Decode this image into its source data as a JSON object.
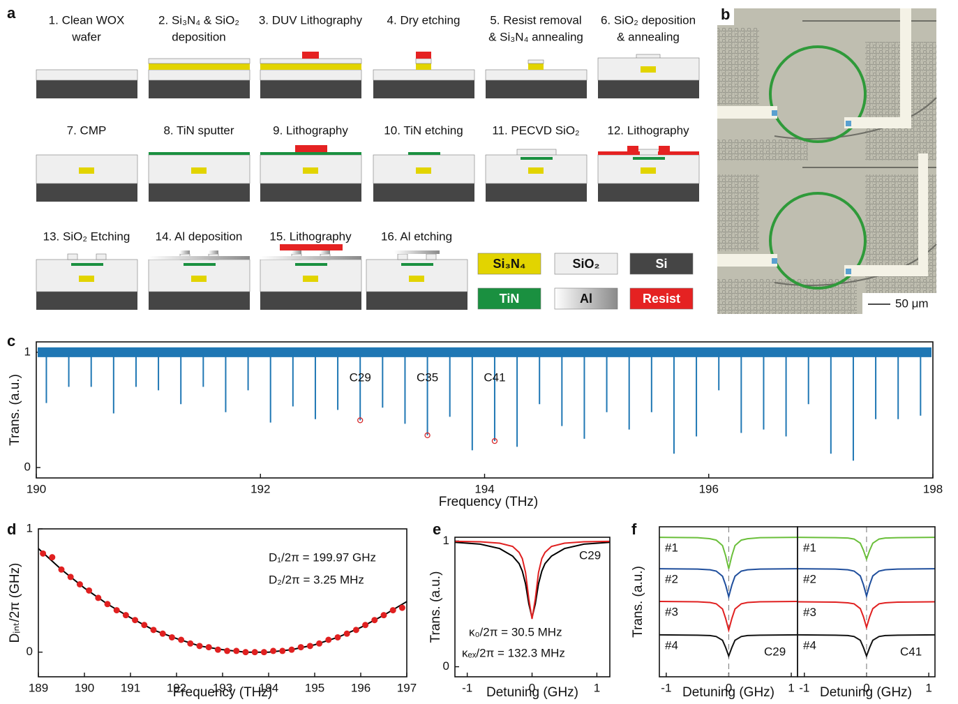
{
  "panel_a": {
    "label": "a",
    "steps": [
      [
        "1. Clean WOX",
        "wafer"
      ],
      [
        "2. Si₃N₄ & SiO₂",
        "deposition"
      ],
      [
        "3. DUV Lithography"
      ],
      [
        "4. Dry etching"
      ],
      [
        "5. Resist removal",
        "& Si₃N₄ annealing"
      ],
      [
        "6. SiO₂ deposition",
        "& annealing"
      ],
      [
        "7. CMP"
      ],
      [
        "8. TiN sputter"
      ],
      [
        "9. Lithography"
      ],
      [
        "10. TiN etching"
      ],
      [
        "11. PECVD SiO₂"
      ],
      [
        "12. Lithography"
      ],
      [
        "13. SiO₂ Etching"
      ],
      [
        "14. Al deposition"
      ],
      [
        "15. Lithography"
      ],
      [
        "16. Al etching"
      ]
    ],
    "legend": [
      {
        "text": "Si₃N₄",
        "color": "#e2d400"
      },
      {
        "text": "SiO₂",
        "color": "#efefef"
      },
      {
        "text": "Si",
        "color": "#454545"
      },
      {
        "text": "TiN",
        "color": "#1a9040"
      },
      {
        "text": "Al",
        "color": "#8a8a8a"
      },
      {
        "text": "Resist",
        "color": "#e52222"
      }
    ]
  },
  "panel_b": {
    "label": "b",
    "scale_bar": "50 μm"
  },
  "chart_data": [
    {
      "type": "spectrum",
      "label": "c",
      "x_label": "Frequency (THz)",
      "y_label": "Trans. (a.u.)",
      "xlim": [
        190,
        198
      ],
      "ylim": [
        -0.09,
        1.09
      ],
      "xticks": [
        190,
        192,
        194,
        196,
        198
      ],
      "yticks": [
        0,
        1
      ],
      "baseline": 1,
      "color": "#1f77b4",
      "x": [
        190.09,
        190.29,
        190.49,
        190.69,
        190.89,
        191.09,
        191.29,
        191.49,
        191.69,
        191.89,
        192.09,
        192.29,
        192.49,
        192.69,
        192.89,
        193.09,
        193.29,
        193.49,
        193.69,
        193.89,
        194.09,
        194.29,
        194.49,
        194.69,
        194.89,
        195.09,
        195.29,
        195.49,
        195.69,
        195.89,
        196.09,
        196.29,
        196.49,
        196.69,
        196.89,
        197.09,
        197.29,
        197.49,
        197.69,
        197.89
      ],
      "values": [
        0.56,
        0.7,
        0.7,
        0.47,
        0.7,
        0.67,
        0.55,
        0.7,
        0.48,
        0.67,
        0.39,
        0.53,
        0.42,
        0.5,
        0.41,
        0.52,
        0.38,
        0.28,
        0.44,
        0.15,
        0.23,
        0.18,
        0.55,
        0.36,
        0.25,
        0.48,
        0.33,
        0.48,
        0.12,
        0.27,
        0.67,
        0.3,
        0.33,
        0.27,
        0.55,
        0.12,
        0.06,
        0.42,
        0.42,
        0.45
      ],
      "markers": {
        "labels": [
          "C29",
          "C35",
          "C41"
        ],
        "x": [
          192.89,
          193.49,
          194.09
        ],
        "values": [
          0.41,
          0.28,
          0.23
        ],
        "color": "#d62728"
      }
    },
    {
      "type": "scatter",
      "label": "d",
      "x_label": "Frequency (THz)",
      "y_label": "Dᵢₙₜ/2π (GHz)",
      "xlim": [
        189,
        197
      ],
      "ylim": [
        -0.2,
        1
      ],
      "xticks": [
        189,
        190,
        191,
        192,
        193,
        194,
        195,
        196,
        197
      ],
      "yticks": [
        0,
        1
      ],
      "color": "#e02020",
      "x": [
        189.1,
        189.3,
        189.5,
        189.7,
        189.9,
        190.1,
        190.3,
        190.5,
        190.7,
        190.9,
        191.1,
        191.3,
        191.5,
        191.7,
        191.9,
        192.1,
        192.3,
        192.5,
        192.7,
        192.9,
        193.1,
        193.3,
        193.5,
        193.7,
        193.9,
        194.1,
        194.3,
        194.5,
        194.7,
        194.9,
        195.1,
        195.3,
        195.5,
        195.7,
        195.9,
        196.1,
        196.3,
        196.5,
        196.7,
        196.9
      ],
      "values": [
        0.8,
        0.77,
        0.67,
        0.61,
        0.55,
        0.5,
        0.44,
        0.39,
        0.34,
        0.3,
        0.26,
        0.22,
        0.18,
        0.15,
        0.12,
        0.1,
        0.07,
        0.05,
        0.04,
        0.02,
        0.01,
        0.01,
        0,
        0,
        0,
        0.01,
        0.01,
        0.02,
        0.04,
        0.05,
        0.07,
        0.1,
        0.12,
        0.15,
        0.18,
        0.22,
        0.26,
        0.3,
        0.34,
        0.36
      ],
      "fit": {
        "color": "#000000",
        "x": [
          189,
          189.5,
          190,
          190.5,
          191,
          191.5,
          192,
          192.5,
          193,
          193.5,
          194,
          194.5,
          195,
          195.5,
          196,
          196.5,
          197
        ],
        "values": [
          0.84,
          0.67,
          0.52,
          0.39,
          0.28,
          0.18,
          0.11,
          0.05,
          0.02,
          0,
          0,
          0.02,
          0.06,
          0.12,
          0.2,
          0.3,
          0.41
        ]
      },
      "annotations": [
        "D₁/2π = 199.97 GHz",
        "D₂/2π = 3.25 MHz"
      ]
    },
    {
      "type": "line",
      "label": "e",
      "x_label": "Detuning (GHz)",
      "y_label": "Trans. (a.u.)",
      "xlim": [
        -1.19,
        1.2
      ],
      "ylim": [
        -0.08,
        1.03
      ],
      "xticks": [
        -1,
        0,
        1
      ],
      "yticks": [
        0,
        1
      ],
      "x": [
        -1.19,
        -0.8,
        -0.5,
        -0.3,
        -0.2,
        -0.15,
        -0.1,
        -0.05,
        0,
        0.05,
        0.1,
        0.15,
        0.2,
        0.3,
        0.5,
        0.8,
        1.2
      ],
      "series": [
        {
          "color": "#000000",
          "values": [
            0.99,
            0.975,
            0.94,
            0.88,
            0.82,
            0.76,
            0.66,
            0.5,
            0.39,
            0.5,
            0.66,
            0.76,
            0.82,
            0.88,
            0.94,
            0.975,
            0.99
          ]
        },
        {
          "color": "#e02020",
          "values": [
            0.997,
            0.994,
            0.983,
            0.957,
            0.909,
            0.86,
            0.75,
            0.54,
            0.38,
            0.54,
            0.75,
            0.86,
            0.909,
            0.957,
            0.983,
            0.994,
            0.997
          ]
        }
      ],
      "annotations": [
        "C29",
        "κ₀/2π = 30.5 MHz",
        "κₑₓ/2π = 132.3 MHz"
      ]
    },
    {
      "type": "line",
      "label": "f",
      "x_label": "Detuning (GHz)",
      "y_label": "Trans. (a.u.)",
      "xlim": [
        -1.11,
        1.1
      ],
      "ylim": [
        0,
        4.4
      ],
      "xticks": [
        -1,
        0,
        1
      ],
      "zero_line": true,
      "x": [
        -1.11,
        -0.5,
        -0.3,
        -0.2,
        -0.1,
        -0.05,
        0,
        0.05,
        0.1,
        0.2,
        0.3,
        0.5,
        1.1
      ],
      "series": [
        {
          "name": "#1",
          "color": "#6abf3a",
          "values": [
            4.09,
            4.08,
            4.05,
            4.01,
            3.85,
            3.55,
            3.17,
            3.55,
            3.85,
            4.01,
            4.05,
            4.08,
            4.09
          ]
        },
        {
          "name": "#2",
          "color": "#1f4e9c",
          "values": [
            3.17,
            3.16,
            3.14,
            3.1,
            2.95,
            2.69,
            2.35,
            2.69,
            2.95,
            3.1,
            3.14,
            3.16,
            3.17
          ]
        },
        {
          "name": "#3",
          "color": "#e02020",
          "values": [
            2.21,
            2.2,
            2.18,
            2.14,
            1.99,
            1.71,
            1.37,
            1.71,
            1.99,
            2.14,
            2.18,
            2.2,
            2.21
          ]
        },
        {
          "name": "#4",
          "color": "#111111",
          "values": [
            1.23,
            1.22,
            1.21,
            1.18,
            1.07,
            0.86,
            0.61,
            0.86,
            1.07,
            1.18,
            1.21,
            1.22,
            1.23
          ]
        }
      ],
      "annotations": [
        "C29"
      ]
    },
    {
      "type": "line",
      "x_label": "Detuning (GHz)",
      "xlim": [
        -1.11,
        1.1
      ],
      "ylim": [
        0,
        4.4
      ],
      "xticks": [
        -1,
        0,
        1
      ],
      "zero_line": true,
      "x": [
        -1.11,
        -0.5,
        -0.3,
        -0.2,
        -0.1,
        -0.05,
        0,
        0.05,
        0.1,
        0.2,
        0.3,
        0.5,
        1.1
      ],
      "series": [
        {
          "name": "#1",
          "color": "#6abf3a",
          "values": [
            4.09,
            4.08,
            4.07,
            4.04,
            3.92,
            3.71,
            3.45,
            3.71,
            3.92,
            4.04,
            4.07,
            4.08,
            4.09
          ]
        },
        {
          "name": "#2",
          "color": "#1f4e9c",
          "values": [
            3.17,
            3.16,
            3.14,
            3.1,
            2.96,
            2.7,
            2.37,
            2.7,
            2.96,
            3.1,
            3.14,
            3.16,
            3.17
          ]
        },
        {
          "name": "#3",
          "color": "#e02020",
          "values": [
            2.2,
            2.19,
            2.17,
            2.14,
            2,
            1.76,
            1.45,
            1.76,
            2,
            2.14,
            2.17,
            2.19,
            2.2
          ]
        },
        {
          "name": "#4",
          "color": "#111111",
          "values": [
            1.23,
            1.22,
            1.21,
            1.18,
            1.07,
            0.86,
            0.61,
            0.86,
            1.07,
            1.18,
            1.21,
            1.22,
            1.23
          ]
        }
      ],
      "annotations": [
        "C41"
      ]
    }
  ]
}
